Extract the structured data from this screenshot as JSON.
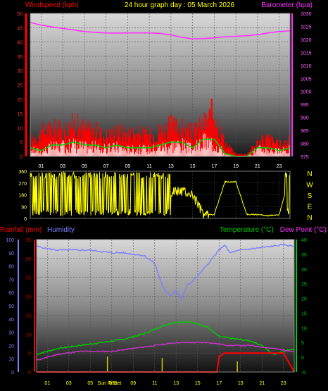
{
  "header": {
    "left_label": "Windspeed (kph)",
    "center_label": "24 hour graph day : 05 March 2026",
    "right_label": "Barometer (hpa)"
  },
  "lower_header": {
    "rainfall": "Rainfall (mm)",
    "humidity": "Humidity",
    "temperature": "Temperature (°C)",
    "dewpoint": "Dew Point (°C)"
  },
  "colors": {
    "wind": "#ff0000",
    "gust": "#ffffff",
    "wind_avg": "#00cc00",
    "barometer": "#ff33ff",
    "direction": "#ffff00",
    "humidity": "#7f7fff",
    "temperature": "#00cc00",
    "dewpoint": "#cc33cc",
    "rain": "#ff0000",
    "solar_marker": "#cccc00",
    "lower_left_axis_text": "#cc0000",
    "hum_axis_text": "#8080ff",
    "temp_axis_text": "#00cc00"
  },
  "x_ticks": [
    "01",
    "03",
    "05",
    "07",
    "09",
    "11",
    "13",
    "15",
    "17",
    "19",
    "21",
    "23"
  ],
  "direction_labels": [
    "N",
    "W",
    "S",
    "E",
    "N"
  ],
  "sun_label": "Sun Rise",
  "set_label": "Set",
  "chart_data": [
    {
      "type": "line",
      "title": "24 hour graph day : 05 March 2026",
      "ylabel": "Windspeed (kph)",
      "y2label": "Barometer (hpa)",
      "ylim": [
        0,
        50
      ],
      "y2lim": [
        975,
        1030
      ],
      "yticks": [
        0,
        5,
        10,
        15,
        20,
        25,
        30,
        35,
        40,
        45,
        50
      ],
      "y2ticks": [
        975,
        980,
        985,
        990,
        995,
        1000,
        1005,
        1010,
        1015,
        1020,
        1025,
        1030
      ],
      "xlim": [
        0,
        24
      ],
      "series": [
        {
          "name": "Barometer",
          "axis": "y2",
          "x": [
            0,
            1,
            2,
            3,
            4,
            5,
            6,
            7,
            8,
            9,
            10,
            11,
            12,
            13,
            14,
            15,
            16,
            17,
            18,
            19,
            20,
            21,
            22,
            23,
            24
          ],
          "values": [
            1026.5,
            1025.5,
            1024.8,
            1024.2,
            1023.6,
            1023.0,
            1022.7,
            1022.5,
            1022.4,
            1022.5,
            1022.5,
            1022.5,
            1022.3,
            1021.7,
            1020.8,
            1020.2,
            1020.3,
            1020.6,
            1021.0,
            1021.2,
            1021.4,
            1021.8,
            1022.5,
            1023.0,
            1023.3
          ]
        },
        {
          "name": "Wind Avg",
          "axis": "y",
          "x": [
            0,
            1,
            2,
            3,
            4,
            5,
            6,
            7,
            8,
            9,
            10,
            11,
            12,
            13,
            14,
            15,
            16,
            17,
            18,
            19,
            20,
            21,
            22,
            23,
            24
          ],
          "values": [
            3,
            2,
            4,
            4,
            5,
            4,
            4,
            3,
            4,
            3,
            3,
            3,
            4,
            5,
            5,
            3,
            6,
            6,
            1,
            0,
            0,
            3,
            3,
            2,
            3
          ]
        },
        {
          "name": "Gust",
          "axis": "y",
          "x": [
            0,
            1,
            2,
            3,
            4,
            5,
            6,
            7,
            8,
            9,
            10,
            11,
            12,
            13,
            14,
            15,
            16,
            17,
            18,
            19,
            20,
            21,
            22,
            23,
            24
          ],
          "values": [
            7,
            10,
            12,
            11,
            14,
            12,
            11,
            9,
            11,
            10,
            10,
            9,
            11,
            13,
            12,
            10,
            14,
            19,
            6,
            1,
            1,
            6,
            8,
            5,
            7
          ]
        }
      ]
    },
    {
      "type": "line",
      "ylabel": "Wind Direction",
      "ylim": [
        0,
        360
      ],
      "yticks": [
        0,
        90,
        180,
        270,
        360
      ],
      "xlim": [
        0,
        24
      ],
      "series": [
        {
          "name": "Direction",
          "x": [
            0,
            1,
            2,
            3,
            4,
            5,
            6,
            7,
            8,
            9,
            10,
            11,
            12,
            13,
            14,
            15,
            16,
            17,
            18,
            19,
            20,
            21,
            22,
            23,
            24
          ],
          "values": [
            30,
            330,
            40,
            320,
            30,
            340,
            20,
            320,
            60,
            330,
            40,
            330,
            320,
            200,
            210,
            180,
            30,
            30,
            280,
            280,
            30,
            30,
            20,
            30,
            330
          ]
        }
      ]
    },
    {
      "type": "line",
      "ylabel": "Rainfall (mm)",
      "y2label": "Temperature (°C)",
      "y3label": "Humidity",
      "ylim": [
        0,
        35
      ],
      "yticks": [
        0,
        5,
        10,
        15,
        20,
        25,
        30,
        35
      ],
      "humlim": [
        0,
        100
      ],
      "humticks": [
        0,
        10,
        20,
        30,
        40,
        50,
        60,
        70,
        80,
        90,
        100
      ],
      "y2lim": [
        -5,
        40
      ],
      "y2ticks": [
        -5,
        0,
        5,
        10,
        15,
        20,
        25,
        30,
        35,
        40
      ],
      "xlim": [
        0,
        24
      ],
      "series": [
        {
          "name": "Humidity",
          "axis": "hum",
          "x": [
            0,
            1,
            2,
            3,
            4,
            5,
            6,
            7,
            8,
            9,
            10,
            11,
            11.5,
            12,
            12.5,
            13,
            13.5,
            14,
            15,
            16,
            17,
            17.5,
            18,
            19,
            20,
            21,
            22,
            23,
            24
          ],
          "values": [
            95,
            93,
            92,
            92,
            92,
            92,
            91,
            90,
            90,
            89,
            88,
            82,
            70,
            60,
            58,
            62,
            55,
            65,
            72,
            82,
            92,
            96,
            90,
            92,
            93,
            94,
            95,
            96,
            95
          ]
        },
        {
          "name": "Temperature",
          "axis": "temp",
          "x": [
            0,
            1,
            2,
            3,
            4,
            5,
            6,
            7,
            8,
            9,
            10,
            11,
            12,
            13,
            14,
            15,
            16,
            17,
            18,
            19,
            20,
            21,
            22,
            23,
            24
          ],
          "values": [
            1,
            2,
            3,
            3.5,
            4,
            4.5,
            5,
            5.5,
            6,
            7,
            8,
            9.5,
            11,
            12,
            12,
            11.5,
            10,
            7,
            6.5,
            6,
            5.5,
            4,
            1,
            2,
            3
          ]
        },
        {
          "name": "Dew Point",
          "axis": "temp",
          "x": [
            0,
            1,
            2,
            3,
            4,
            5,
            6,
            7,
            8,
            9,
            10,
            11,
            12,
            13,
            14,
            15,
            16,
            17,
            18,
            19,
            20,
            21,
            22,
            23,
            24
          ],
          "values": [
            -1,
            0,
            1,
            1.5,
            2,
            2,
            2,
            2,
            2.5,
            3,
            3.5,
            4,
            4.5,
            5,
            5,
            5,
            5,
            4.5,
            4,
            4,
            4,
            3.5,
            3,
            2.5,
            2
          ]
        },
        {
          "name": "Rainfall",
          "axis": "rain",
          "x": [
            0,
            16.8,
            17,
            17.5,
            18,
            19,
            20,
            21,
            22,
            23,
            24
          ],
          "values": [
            0,
            0,
            4,
            5,
            5,
            5,
            5,
            5,
            5,
            5,
            0
          ]
        }
      ]
    }
  ]
}
